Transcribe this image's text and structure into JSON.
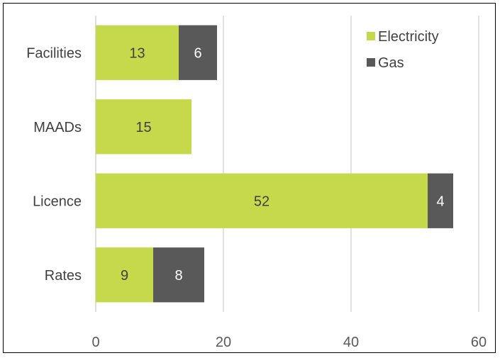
{
  "chart_data": {
    "type": "bar",
    "orientation": "horizontal",
    "stacked": true,
    "categories": [
      "Facilities",
      "MAADs",
      "Licence",
      "Rates"
    ],
    "series": [
      {
        "name": "Electricity",
        "color": "#c5d94a",
        "label_color": "#404040",
        "values": [
          13,
          15,
          52,
          9
        ]
      },
      {
        "name": "Gas",
        "color": "#595959",
        "label_color": "#ffffff",
        "values": [
          6,
          0,
          4,
          8
        ]
      }
    ],
    "xlim": [
      0,
      60
    ],
    "x_ticks": [
      "0",
      "20",
      "40",
      "60"
    ],
    "grid": "vertical",
    "legend": "top-right"
  }
}
